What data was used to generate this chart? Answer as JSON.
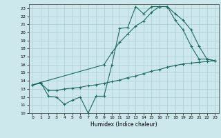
{
  "xlabel": "Humidex (Indice chaleur)",
  "xlim": [
    -0.5,
    23.5
  ],
  "ylim": [
    10,
    23.5
  ],
  "xticks": [
    0,
    1,
    2,
    3,
    4,
    5,
    6,
    7,
    8,
    9,
    10,
    11,
    12,
    13,
    14,
    15,
    16,
    17,
    18,
    19,
    20,
    21,
    22,
    23
  ],
  "yticks": [
    10,
    11,
    12,
    13,
    14,
    15,
    16,
    17,
    18,
    19,
    20,
    21,
    22,
    23
  ],
  "background_color": "#cde8ed",
  "grid_color": "#aacdd5",
  "line_color": "#1a6b5e",
  "line1_x": [
    0,
    1,
    2,
    3,
    4,
    5,
    6,
    7,
    8,
    9,
    10,
    11,
    12,
    13,
    14,
    15,
    16,
    17,
    18,
    19,
    20,
    21,
    22,
    23
  ],
  "line1_y": [
    13.5,
    13.8,
    12.1,
    12.0,
    11.1,
    11.6,
    12.0,
    10.0,
    12.1,
    12.1,
    16.0,
    20.5,
    20.6,
    23.2,
    22.3,
    23.2,
    23.2,
    23.2,
    21.5,
    20.3,
    18.3,
    16.7,
    16.7,
    16.5
  ],
  "line2_x": [
    0,
    1,
    2,
    3,
    4,
    5,
    6,
    7,
    8,
    9,
    10,
    11,
    12,
    13,
    14,
    15,
    16,
    17,
    18,
    19,
    20,
    21,
    22,
    23
  ],
  "line2_y": [
    13.5,
    13.7,
    12.8,
    12.8,
    13.0,
    13.1,
    13.2,
    13.4,
    13.5,
    13.7,
    13.9,
    14.1,
    14.4,
    14.6,
    14.9,
    15.2,
    15.4,
    15.7,
    15.9,
    16.1,
    16.2,
    16.3,
    16.4,
    16.5
  ],
  "line3_x": [
    0,
    1,
    9,
    10,
    11,
    12,
    13,
    14,
    15,
    16,
    17,
    18,
    19,
    20,
    21,
    22,
    23
  ],
  "line3_y": [
    13.5,
    13.8,
    16.0,
    17.5,
    18.8,
    19.8,
    20.8,
    21.4,
    22.5,
    23.2,
    23.2,
    22.3,
    21.5,
    20.3,
    18.3,
    16.7,
    16.5
  ]
}
